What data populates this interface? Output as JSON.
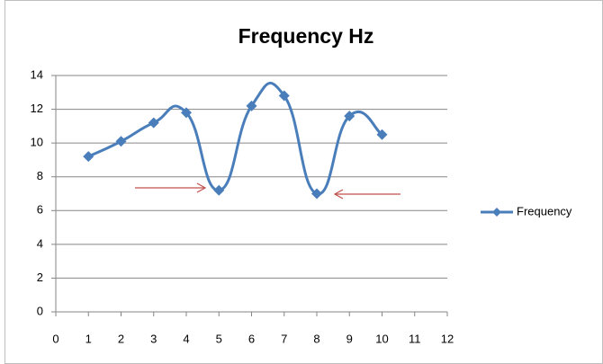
{
  "chart_data": {
    "type": "line",
    "title": "Frequency Hz",
    "x": [
      1,
      2,
      3,
      4,
      5,
      6,
      7,
      8,
      9,
      10
    ],
    "series": [
      {
        "name": "Frequency",
        "color": "#4a7ebb",
        "values": [
          9.2,
          10.1,
          11.2,
          11.8,
          7.2,
          12.2,
          12.8,
          7.0,
          11.6,
          10.5
        ]
      }
    ],
    "xlim": [
      0,
      12
    ],
    "xticks": [
      0,
      1,
      2,
      3,
      4,
      5,
      6,
      7,
      8,
      9,
      10,
      11,
      12
    ],
    "ylim": [
      0,
      14
    ],
    "yticks": [
      0,
      2,
      4,
      6,
      8,
      10,
      12,
      14
    ],
    "grid": true,
    "smooth": true,
    "legend": "right"
  }
}
